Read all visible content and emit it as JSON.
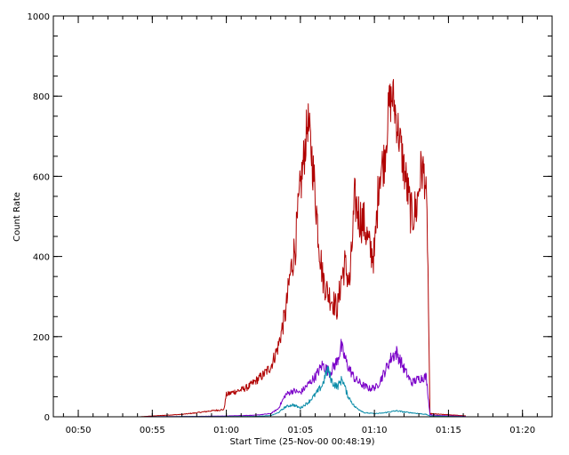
{
  "chart_data": {
    "type": "line",
    "xlabel": "Start Time (25-Nov-00 00:48:19)",
    "ylabel": "Count Rate",
    "x_unit": "time (HH:MM)",
    "xlim": [
      "00:48:19",
      "01:22:00"
    ],
    "ylim": [
      0,
      1000
    ],
    "grid": false,
    "legend": "none",
    "x_ticks": [
      "00:50",
      "00:55",
      "01:00",
      "01:05",
      "01:10",
      "01:15",
      "01:20"
    ],
    "y_ticks": [
      0,
      200,
      400,
      600,
      800,
      1000
    ],
    "series": [
      {
        "color": "#b00000",
        "points": [
          [
            "00:54:10",
            0
          ],
          [
            "00:55:00",
            2
          ],
          [
            "00:56:00",
            4
          ],
          [
            "00:57:00",
            6
          ],
          [
            "00:58:00",
            10
          ],
          [
            "00:59:00",
            15
          ],
          [
            "00:59:50",
            18
          ],
          [
            "01:00:00",
            55
          ],
          [
            "01:00:30",
            62
          ],
          [
            "01:01:00",
            67
          ],
          [
            "01:01:30",
            75
          ],
          [
            "01:02:00",
            90
          ],
          [
            "01:02:30",
            105
          ],
          [
            "01:03:00",
            125
          ],
          [
            "01:03:30",
            175
          ],
          [
            "01:04:00",
            260
          ],
          [
            "01:04:20",
            360
          ],
          [
            "01:04:40",
            430
          ],
          [
            "01:05:00",
            570
          ],
          [
            "01:05:15",
            650
          ],
          [
            "01:05:30",
            740
          ],
          [
            "01:05:45",
            660
          ],
          [
            "01:06:00",
            560
          ],
          [
            "01:06:15",
            440
          ],
          [
            "01:06:30",
            350
          ],
          [
            "01:06:50",
            310
          ],
          [
            "01:07:10",
            290
          ],
          [
            "01:07:30",
            270
          ],
          [
            "01:07:45",
            340
          ],
          [
            "01:08:00",
            380
          ],
          [
            "01:08:20",
            330
          ],
          [
            "01:08:40",
            540
          ],
          [
            "01:09:00",
            500
          ],
          [
            "01:09:20",
            480
          ],
          [
            "01:09:40",
            420
          ],
          [
            "01:10:00",
            400
          ],
          [
            "01:10:20",
            610
          ],
          [
            "01:10:40",
            640
          ],
          [
            "01:11:00",
            780
          ],
          [
            "01:11:15",
            800
          ],
          [
            "01:11:30",
            740
          ],
          [
            "01:11:50",
            660
          ],
          [
            "01:12:10",
            580
          ],
          [
            "01:12:30",
            500
          ],
          [
            "01:12:50",
            520
          ],
          [
            "01:13:10",
            620
          ],
          [
            "01:13:25",
            600
          ],
          [
            "01:13:35",
            450
          ],
          [
            "01:13:45",
            8
          ],
          [
            "01:14:30",
            6
          ],
          [
            "01:15:30",
            4
          ],
          [
            "01:16:10",
            2
          ]
        ]
      },
      {
        "color": "#7a00c8",
        "points": [
          [
            "00:54:10",
            0
          ],
          [
            "00:58:00",
            1
          ],
          [
            "01:00:00",
            2
          ],
          [
            "01:02:00",
            4
          ],
          [
            "01:03:00",
            8
          ],
          [
            "01:03:30",
            20
          ],
          [
            "01:04:00",
            55
          ],
          [
            "01:04:30",
            65
          ],
          [
            "01:05:00",
            60
          ],
          [
            "01:05:30",
            80
          ],
          [
            "01:06:00",
            100
          ],
          [
            "01:06:30",
            130
          ],
          [
            "01:07:00",
            110
          ],
          [
            "01:07:30",
            140
          ],
          [
            "01:07:45",
            175
          ],
          [
            "01:08:10",
            130
          ],
          [
            "01:08:40",
            95
          ],
          [
            "01:09:10",
            80
          ],
          [
            "01:09:40",
            70
          ],
          [
            "01:10:10",
            75
          ],
          [
            "01:10:40",
            110
          ],
          [
            "01:11:10",
            150
          ],
          [
            "01:11:30",
            160
          ],
          [
            "01:12:00",
            120
          ],
          [
            "01:12:30",
            85
          ],
          [
            "01:13:00",
            95
          ],
          [
            "01:13:30",
            100
          ],
          [
            "01:13:45",
            5
          ],
          [
            "01:14:30",
            3
          ],
          [
            "01:16:10",
            1
          ]
        ]
      },
      {
        "color": "#0a8ca8",
        "points": [
          [
            "00:54:10",
            0
          ],
          [
            "01:02:00",
            1
          ],
          [
            "01:03:00",
            3
          ],
          [
            "01:03:30",
            10
          ],
          [
            "01:04:00",
            25
          ],
          [
            "01:04:30",
            30
          ],
          [
            "01:05:00",
            22
          ],
          [
            "01:05:30",
            35
          ],
          [
            "01:06:00",
            55
          ],
          [
            "01:06:30",
            80
          ],
          [
            "01:06:50",
            120
          ],
          [
            "01:07:10",
            85
          ],
          [
            "01:07:30",
            75
          ],
          [
            "01:07:50",
            95
          ],
          [
            "01:08:10",
            55
          ],
          [
            "01:08:40",
            25
          ],
          [
            "01:09:20",
            10
          ],
          [
            "01:10:00",
            8
          ],
          [
            "01:10:30",
            9
          ],
          [
            "01:11:00",
            12
          ],
          [
            "01:11:30",
            15
          ],
          [
            "01:12:00",
            12
          ],
          [
            "01:12:30",
            10
          ],
          [
            "01:13:00",
            8
          ],
          [
            "01:13:30",
            6
          ],
          [
            "01:13:45",
            2
          ],
          [
            "01:16:10",
            0
          ]
        ]
      }
    ]
  }
}
